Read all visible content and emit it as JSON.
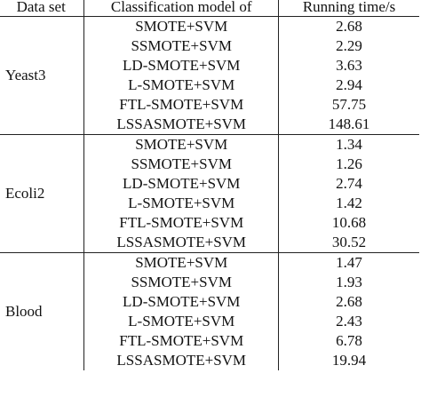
{
  "headers": {
    "dataset": "Data set",
    "model": "Classification model of",
    "time": "Running time/s"
  },
  "groups": [
    {
      "dataset": "Yeast3",
      "rows": [
        {
          "model": "SMOTE+SVM",
          "time": "2.68"
        },
        {
          "model": "SSMOTE+SVM",
          "time": "2.29"
        },
        {
          "model": "LD-SMOTE+SVM",
          "time": "3.63"
        },
        {
          "model": "L-SMOTE+SVM",
          "time": "2.94"
        },
        {
          "model": "FTL-SMOTE+SVM",
          "time": "57.75"
        },
        {
          "model": "LSSASMOTE+SVM",
          "time": "148.61",
          "bold": true
        }
      ]
    },
    {
      "dataset": "Ecoli2",
      "rows": [
        {
          "model": "SMOTE+SVM",
          "time": "1.34"
        },
        {
          "model": "SSMOTE+SVM",
          "time": "1.26"
        },
        {
          "model": "LD-SMOTE+SVM",
          "time": "2.74"
        },
        {
          "model": "L-SMOTE+SVM",
          "time": "1.42"
        },
        {
          "model": "FTL-SMOTE+SVM",
          "time": "10.68"
        },
        {
          "model": "LSSASMOTE+SVM",
          "time": "30.52",
          "bold": true
        }
      ]
    },
    {
      "dataset": "Blood",
      "rows": [
        {
          "model": "SMOTE+SVM",
          "time": "1.47"
        },
        {
          "model": "SSMOTE+SVM",
          "time": "1.93"
        },
        {
          "model": "LD-SMOTE+SVM",
          "time": "2.68"
        },
        {
          "model": "L-SMOTE+SVM",
          "time": "2.43"
        },
        {
          "model": "FTL-SMOTE+SVM",
          "time": "6.78"
        },
        {
          "model": "LSSASMOTE+SVM",
          "time": "19.94",
          "bold": true
        }
      ]
    }
  ]
}
